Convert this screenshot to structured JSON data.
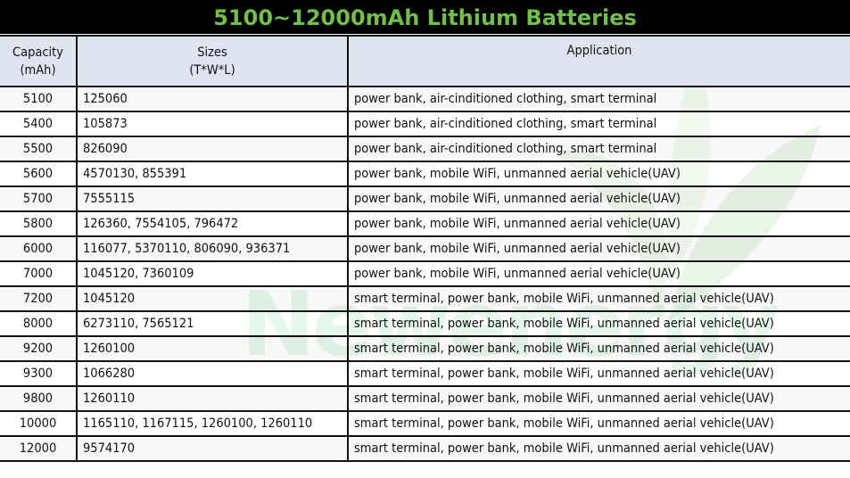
{
  "title": "5100~12000mAh Lithium Batteries",
  "watermark": "Newenergy",
  "columns": {
    "capacity": [
      "Capacity",
      "(mAh)"
    ],
    "sizes": [
      "Sizes",
      "(T*W*L)"
    ],
    "application": "Application"
  },
  "rows": [
    {
      "capacity": "5100",
      "sizes": "125060",
      "application": "power bank, air-cinditioned clothing, smart terminal"
    },
    {
      "capacity": "5400",
      "sizes": "105873",
      "application": "power bank, air-cinditioned clothing, smart terminal"
    },
    {
      "capacity": "5500",
      "sizes": "826090",
      "application": "power bank, air-cinditioned clothing, smart terminal"
    },
    {
      "capacity": "5600",
      "sizes": "4570130, 855391",
      "application": "power bank, mobile WiFi, unmanned aerial vehicle(UAV)"
    },
    {
      "capacity": "5700",
      "sizes": "7555115",
      "application": "power bank, mobile WiFi, unmanned aerial vehicle(UAV)"
    },
    {
      "capacity": "5800",
      "sizes": "126360, 7554105, 796472",
      "application": "power bank, mobile WiFi, unmanned aerial vehicle(UAV)"
    },
    {
      "capacity": "6000",
      "sizes": "116077, 5370110, 806090, 936371",
      "application": "power bank, mobile WiFi, unmanned aerial vehicle(UAV)"
    },
    {
      "capacity": "7000",
      "sizes": "1045120, 7360109",
      "application": "power bank, mobile WiFi, unmanned aerial vehicle(UAV)"
    },
    {
      "capacity": "7200",
      "sizes": "1045120",
      "application": "smart terminal, power bank, mobile WiFi, unmanned aerial vehicle(UAV)"
    },
    {
      "capacity": "8000",
      "sizes": "6273110, 7565121",
      "application": "smart terminal, power bank, mobile WiFi, unmanned aerial vehicle(UAV)"
    },
    {
      "capacity": "9200",
      "sizes": "1260100",
      "application": "smart terminal, power bank, mobile WiFi, unmanned aerial vehicle(UAV)"
    },
    {
      "capacity": "9300",
      "sizes": "1066280",
      "application": "smart terminal, power bank, mobile WiFi, unmanned aerial vehicle(UAV)"
    },
    {
      "capacity": "9800",
      "sizes": "1260110",
      "application": "smart terminal, power bank, mobile WiFi, unmanned aerial vehicle(UAV)"
    },
    {
      "capacity": "10000",
      "sizes": "1165110, 1167115, 1260100, 1260110",
      "application": "smart terminal, power bank, mobile WiFi, unmanned aerial vehicle(UAV)"
    },
    {
      "capacity": "12000",
      "sizes": "9574170",
      "application": "smart terminal, power bank, mobile WiFi, unmanned aerial vehicle(UAV)"
    }
  ]
}
